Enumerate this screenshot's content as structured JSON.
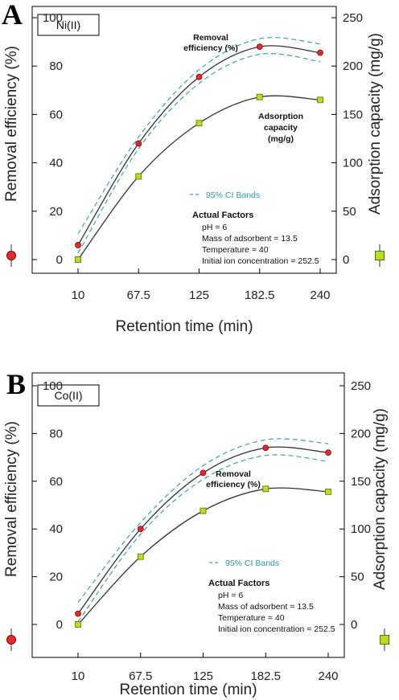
{
  "figure": {
    "x_axis_title": "Retention time  (min)",
    "left_axis_title": "Removal efficiency  (%)",
    "right_axis_title": "Adsorption capacity  (mg/g)",
    "ci_legend_label": "95% CI Bands",
    "factors_title": "Actual Factors",
    "factors": [
      "pH = 6",
      "Mass of adsorbent = 13.5",
      "Temperature = 40",
      "Initial ion concentration = 252.5"
    ],
    "colors": {
      "removal_marker": "#e8282e",
      "adsorption_marker": "#b8e01a",
      "fit_line": "#333333",
      "ci_band": "#3aa6a6"
    }
  },
  "chart_data": [
    {
      "panel": "A",
      "type": "scatter",
      "ion_label": "Ni(II)",
      "removal_annotation": [
        "Removal",
        "efficiency (%)"
      ],
      "adsorption_annotation": [
        "Adsorption",
        "capacity",
        "(mg/g)"
      ],
      "x_ticks": [
        "10",
        "67.5",
        "125",
        "182.5",
        "240"
      ],
      "xlim": [
        10,
        240
      ],
      "y_left_ticks": [
        "0",
        "20",
        "40",
        "60",
        "80",
        "100"
      ],
      "y_left_lim": [
        0,
        100
      ],
      "y_right_ticks": [
        "0",
        "50",
        "100",
        "150",
        "200",
        "250"
      ],
      "y_right_lim": [
        0,
        250
      ],
      "series": [
        {
          "name": "Removal efficiency (%)",
          "axis": "left",
          "marker": "circle",
          "x": [
            10,
            67.5,
            125,
            182.5,
            240
          ],
          "y": [
            6,
            48,
            75.5,
            88,
            85.5
          ]
        },
        {
          "name": "Adsorption capacity (mg/g)",
          "axis": "right",
          "marker": "square",
          "x": [
            10,
            67.5,
            125,
            182.5,
            240
          ],
          "y": [
            0,
            86,
            141,
            168,
            165
          ]
        }
      ]
    },
    {
      "panel": "B",
      "type": "scatter",
      "ion_label": "Co(II)",
      "removal_annotation": [
        "Removal",
        "efficiency (%)"
      ],
      "adsorption_annotation": [],
      "x_ticks": [
        "10",
        "67.5",
        "125",
        "182.5",
        "240"
      ],
      "xlim": [
        10,
        240
      ],
      "y_left_ticks": [
        "0",
        "20",
        "40",
        "60",
        "80",
        "100"
      ],
      "y_left_lim": [
        0,
        100
      ],
      "y_right_ticks": [
        "0",
        "50",
        "100",
        "150",
        "200",
        "250"
      ],
      "y_right_lim": [
        0,
        250
      ],
      "series": [
        {
          "name": "Removal efficiency (%)",
          "axis": "left",
          "marker": "circle",
          "x": [
            10,
            67.5,
            125,
            182.5,
            240
          ],
          "y": [
            4.5,
            40,
            63.5,
            74,
            72
          ]
        },
        {
          "name": "Adsorption capacity (mg/g)",
          "axis": "right",
          "marker": "square",
          "x": [
            10,
            67.5,
            125,
            182.5,
            240
          ],
          "y": [
            0,
            71,
            119,
            142,
            139
          ]
        }
      ]
    }
  ]
}
